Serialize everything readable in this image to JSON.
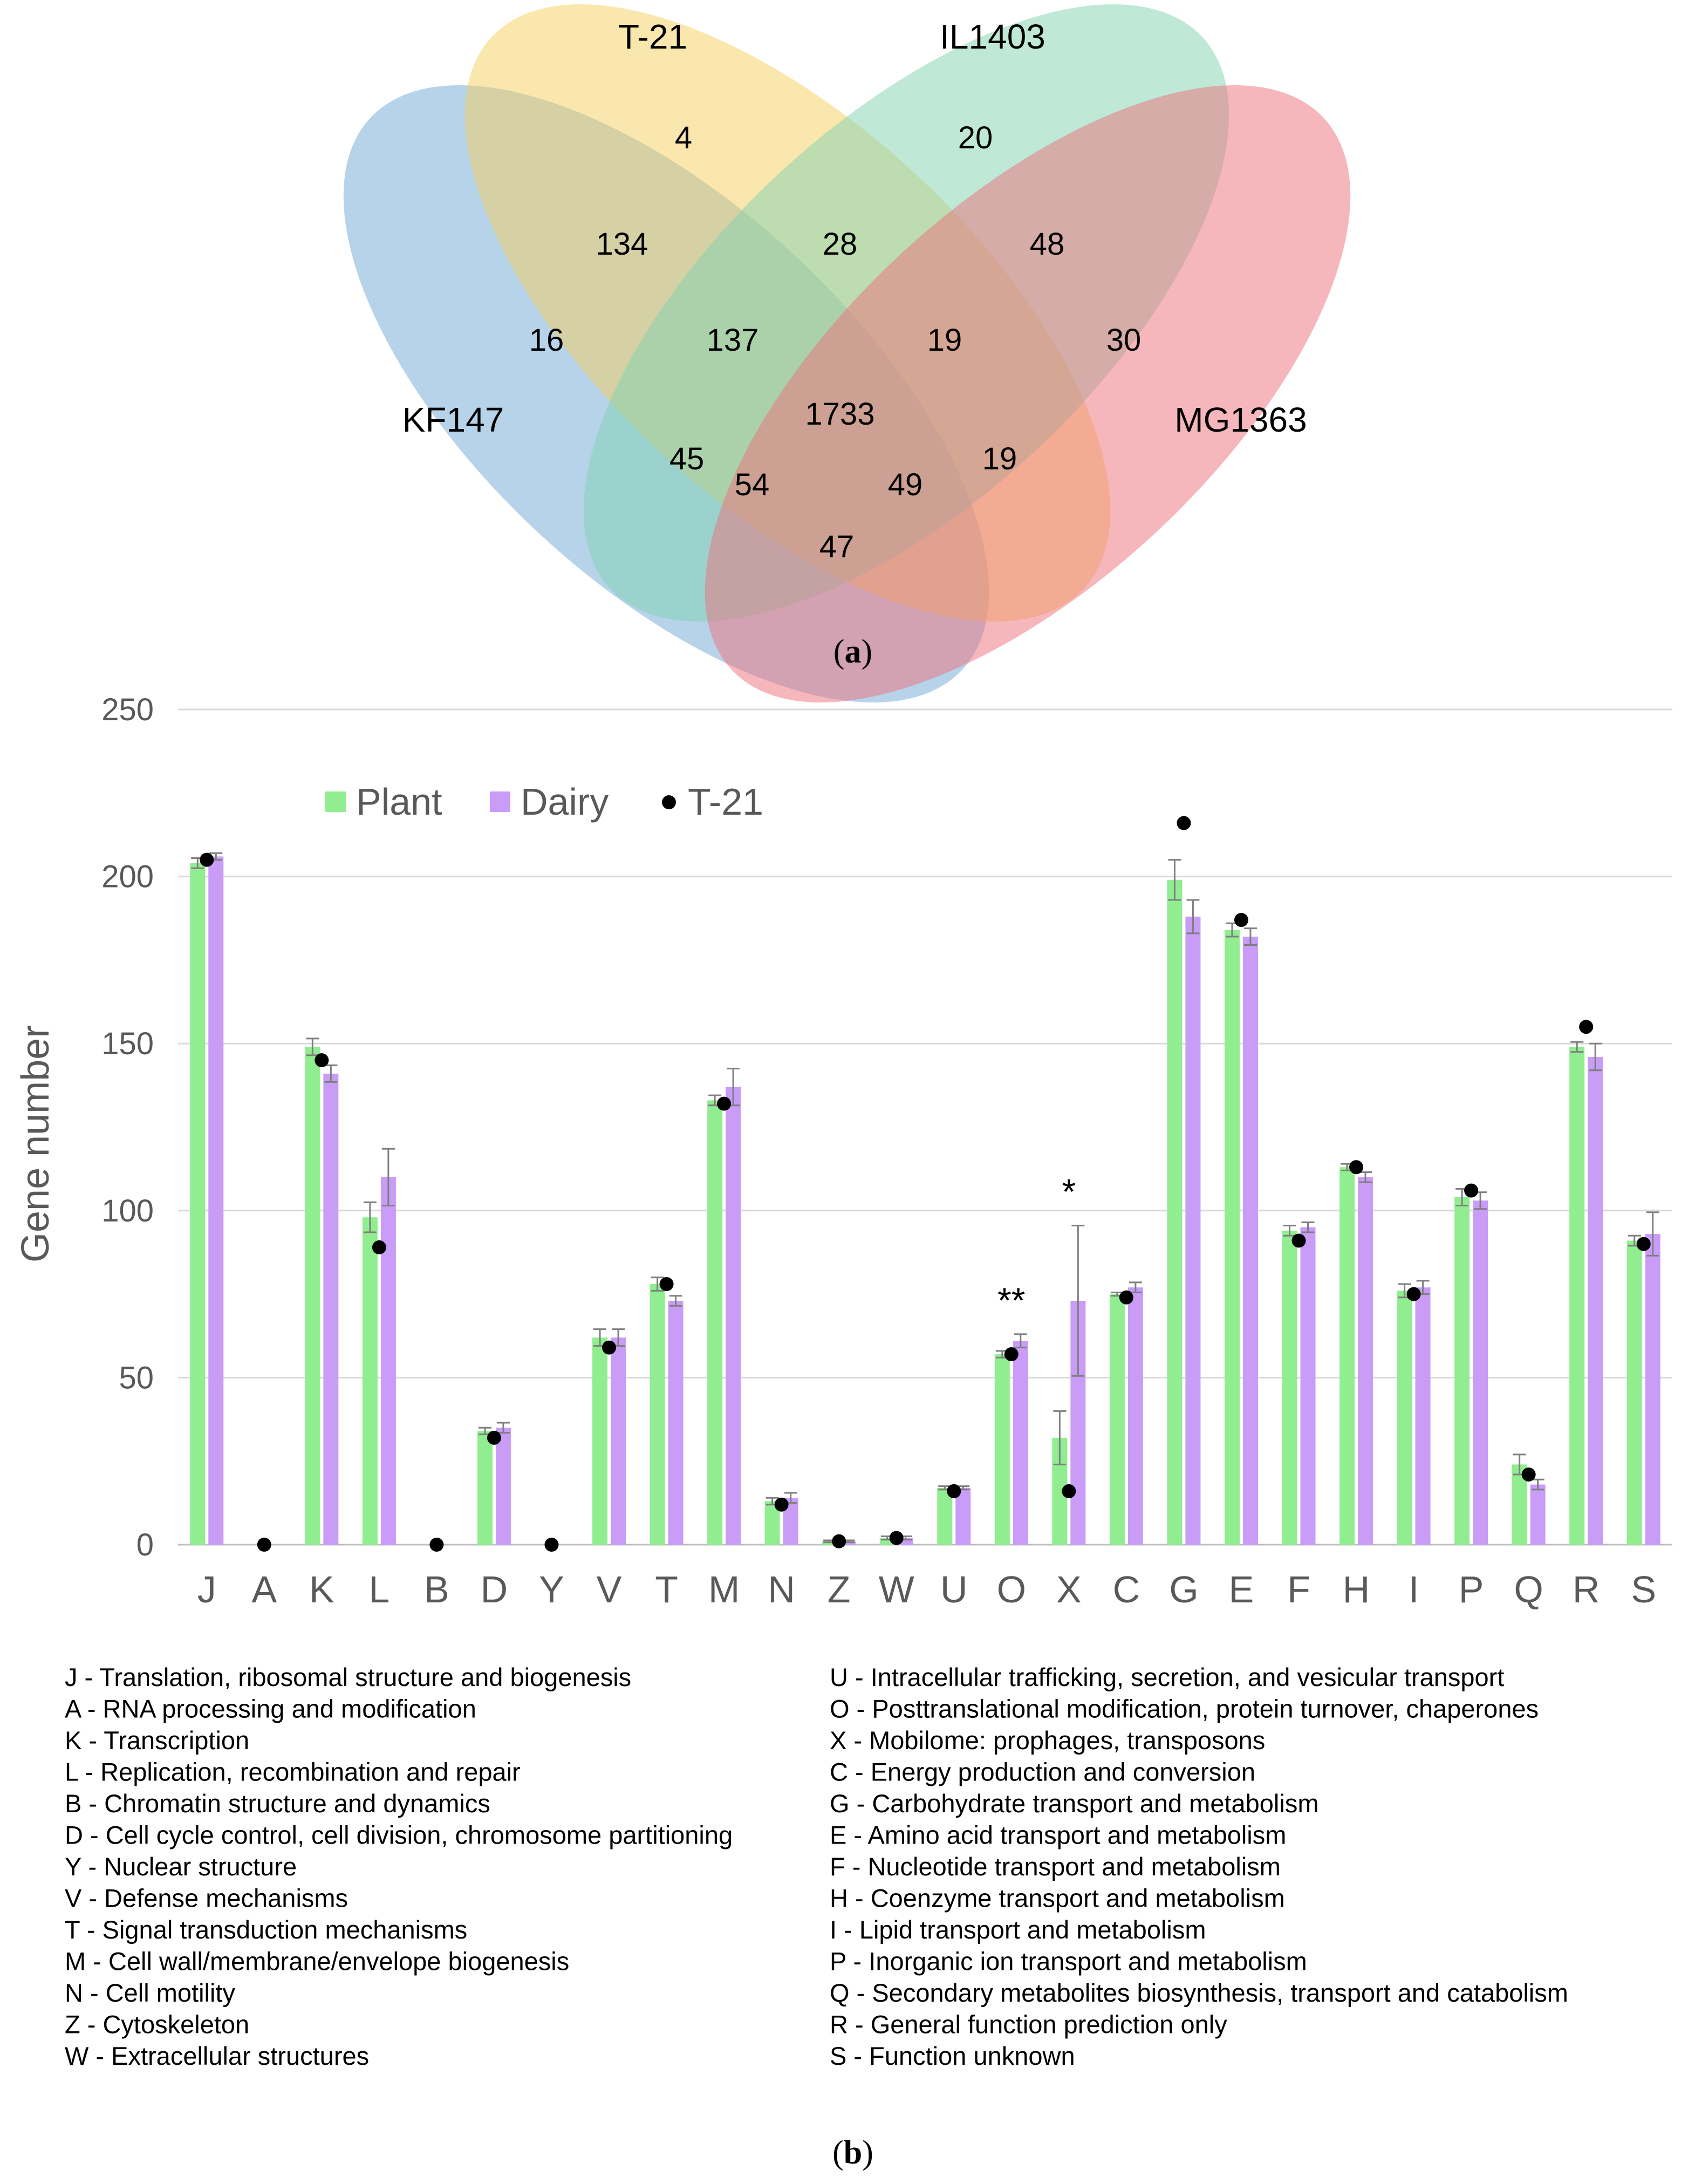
{
  "venn": {
    "sets": [
      {
        "name": "T-21",
        "color": "#f5d05e"
      },
      {
        "name": "IL1403",
        "color": "#7fd1b0"
      },
      {
        "name": "KF147",
        "color": "#6fa8d6"
      },
      {
        "name": "MG1363",
        "color": "#ee7079"
      }
    ],
    "regions": {
      "t21_only": "4",
      "il1403_only": "20",
      "kf147_only": "16",
      "mg1363_only": "30",
      "kf147_t21": "134",
      "t21_il1403": "28",
      "il1403_mg1363": "48",
      "kf147_t21_il1403": "137",
      "t21_il1403_mg1363": "19",
      "all_four": "1733",
      "kf147_il1403": "45",
      "t21_mg1363": "19",
      "kf147_il1403_mg1363": "54",
      "kf147_t21_mg1363": "49",
      "kf147_mg1363": "47"
    },
    "panel_label": "a"
  },
  "chart_data": {
    "type": "bar",
    "ylabel": "Gene number",
    "xlabel": "",
    "ylim": [
      0,
      250
    ],
    "yticks": [
      0,
      50,
      100,
      150,
      200,
      250
    ],
    "grid": true,
    "legend_position": "top-left",
    "categories": [
      "J",
      "A",
      "K",
      "L",
      "B",
      "D",
      "Y",
      "V",
      "T",
      "M",
      "N",
      "Z",
      "W",
      "U",
      "O",
      "X",
      "C",
      "G",
      "E",
      "F",
      "H",
      "I",
      "P",
      "Q",
      "R",
      "S"
    ],
    "series": [
      {
        "name": "Plant",
        "kind": "bar",
        "color": "#90ee90",
        "values": [
          204,
          0,
          149,
          98,
          0,
          34,
          0,
          62,
          78,
          133,
          13,
          1,
          2,
          17,
          57,
          32,
          75,
          199,
          184,
          94,
          113,
          76,
          104,
          24,
          149,
          91
        ],
        "errors": [
          1.5,
          0,
          2.5,
          4.5,
          0,
          1,
          0,
          2.5,
          2,
          1.5,
          1,
          0.3,
          0.5,
          0.5,
          1,
          8,
          0.5,
          6,
          2,
          1.5,
          1,
          2,
          2.5,
          3,
          1.5,
          1.5
        ]
      },
      {
        "name": "Dairy",
        "kind": "bar",
        "color": "#c99cf8",
        "values": [
          206,
          0,
          141,
          110,
          0,
          35,
          0,
          62,
          73,
          137,
          14,
          1,
          2,
          17,
          61,
          73,
          77,
          188,
          182,
          95,
          110,
          77,
          103,
          18,
          146,
          93
        ],
        "errors": [
          1,
          0,
          2.5,
          8.5,
          0,
          1.5,
          0,
          2.5,
          1.5,
          5.5,
          1.5,
          0.3,
          0.5,
          0.5,
          2,
          22.5,
          1.5,
          5,
          2.5,
          1.5,
          1.5,
          2,
          2.5,
          1.5,
          4,
          6.5
        ]
      },
      {
        "name": "T-21",
        "kind": "point",
        "color": "#000000",
        "values": [
          205,
          0,
          145,
          89,
          0,
          32,
          0,
          59,
          78,
          132,
          12,
          1,
          2,
          16,
          57,
          16,
          74,
          216,
          187,
          91,
          113,
          75,
          106,
          21,
          155,
          90
        ]
      }
    ],
    "annotations": [
      {
        "category": "O",
        "text": "**"
      },
      {
        "category": "X",
        "text": "*"
      }
    ]
  },
  "cog_descriptions": {
    "left": [
      "J - Translation, ribosomal structure and biogenesis",
      "A - RNA processing and modification",
      "K - Transcription",
      "L - Replication, recombination and repair",
      "B - Chromatin structure and dynamics",
      "D - Cell cycle control, cell division, chromosome partitioning",
      "Y - Nuclear structure",
      "V - Defense mechanisms",
      "T - Signal transduction mechanisms",
      "M - Cell wall/membrane/envelope biogenesis",
      "N - Cell motility",
      "Z - Cytoskeleton",
      "W - Extracellular structures"
    ],
    "right": [
      "U - Intracellular trafficking, secretion, and vesicular transport",
      "O - Posttranslational modification, protein turnover, chaperones",
      "X - Mobilome: prophages, transposons",
      "C - Energy production and conversion",
      "G - Carbohydrate transport and metabolism",
      "E - Amino acid transport and metabolism",
      "F - Nucleotide transport and metabolism",
      "H - Coenzyme transport and metabolism",
      "I - Lipid transport and metabolism",
      "P - Inorganic ion transport and metabolism",
      "Q - Secondary metabolites biosynthesis, transport and catabolism",
      "R - General function prediction only",
      "S - Function unknown"
    ]
  },
  "chart_panel_label": "b"
}
